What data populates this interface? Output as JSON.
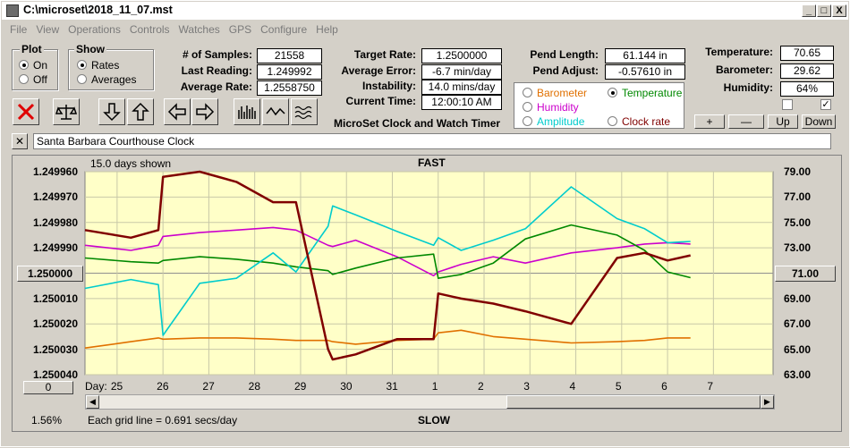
{
  "window": {
    "title": "C:\\microset\\2018_11_07.mst",
    "buttons": [
      "_",
      "□",
      "X"
    ]
  },
  "menu": [
    "File",
    "View",
    "Operations",
    "Controls",
    "Watches",
    "GPS",
    "Configure",
    "Help"
  ],
  "plot": {
    "legend": "Plot",
    "options": [
      "On",
      "Off"
    ],
    "selected": "On"
  },
  "show": {
    "legend": "Show",
    "options": [
      "Rates",
      "Averages"
    ],
    "selected": "Rates"
  },
  "stats": {
    "samples_label": "# of Samples:",
    "samples": "21558",
    "last_label": "Last Reading:",
    "last": "1.249992",
    "avg_label": "Average Rate:",
    "avg": "1.2558750"
  },
  "target": {
    "target_label": "Target Rate:",
    "target": "1.2500000",
    "err_label": "Average Error:",
    "err": "-6.7 min/day",
    "inst_label": "Instability:",
    "inst": "14.0 mins/day",
    "time_label": "Current Time:",
    "time": "12:00:10 AM",
    "app_title": "MicroSet Clock and Watch Timer"
  },
  "pend": {
    "length_label": "Pend Length:",
    "length": "61.144 in",
    "adjust_label": "Pend Adjust:",
    "adjust": "-0.57610 in"
  },
  "env": {
    "temp_label": "Temperature:",
    "temp": "70.65",
    "baro_label": "Barometer:",
    "baro": "29.62",
    "hum_label": "Humidity:",
    "hum": "64%",
    "checks": [
      false,
      true
    ],
    "buttons": [
      "+",
      "—",
      "Up",
      "Down"
    ]
  },
  "selector": {
    "options": [
      "Barometer",
      "Temperature",
      "Humidity",
      "Amplitude",
      "Clock rate"
    ],
    "colors": [
      "#e07000",
      "#008800",
      "#cc00cc",
      "#00cccc",
      "#800000"
    ],
    "selected": "Temperature"
  },
  "clock_name": "Santa Barbara Courthouse Clock",
  "chart": {
    "days_shown": "15.0 days shown",
    "top_label": "FAST",
    "bottom_label": "SLOW",
    "grid_note": "Each grid line = 0.691 secs/day",
    "zoom": "1.56%",
    "left_button": "0",
    "center_left_button": "1.250000",
    "center_right_button": "71.00",
    "day_label": "Day:"
  },
  "chart_data": {
    "type": "line",
    "y_left_ticks": [
      "1.249960",
      "1.249970",
      "1.249980",
      "1.249990",
      "1.250000",
      "1.250010",
      "1.250020",
      "1.250030",
      "1.250040"
    ],
    "y_right_ticks": [
      "79.00",
      "77.00",
      "75.00",
      "73.00",
      "71.00",
      "69.00",
      "67.00",
      "65.00",
      "63.00"
    ],
    "x_ticks": [
      "25",
      "26",
      "27",
      "28",
      "29",
      "30",
      "31",
      "1",
      "2",
      "3",
      "4",
      "5",
      "6",
      "7"
    ],
    "x": [
      24.3,
      25.3,
      25.9,
      26.0,
      26.8,
      27.6,
      28.4,
      28.9,
      29.6,
      29.7,
      30.2,
      31.1,
      31.9,
      32.0,
      32.5,
      33.2,
      33.9,
      34.9,
      35.9,
      36.5,
      37.0,
      37.5
    ],
    "series": [
      {
        "name": "Clock rate",
        "color": "#800000",
        "values": [
          1.249983,
          1.249986,
          1.249983,
          1.249962,
          1.24996,
          1.249964,
          1.249972,
          1.249972,
          1.25003,
          1.250034,
          1.250032,
          1.250026,
          1.250026,
          1.250008,
          1.25001,
          1.250012,
          1.250015,
          1.25002,
          1.249994,
          1.249992,
          1.249995,
          1.249993
        ]
      },
      {
        "name": "Temperature",
        "color": "#008800",
        "values": [
          72.2,
          71.9,
          71.8,
          72.0,
          72.3,
          72.1,
          71.8,
          71.5,
          71.2,
          70.9,
          71.4,
          72.2,
          72.5,
          70.6,
          70.9,
          71.8,
          73.7,
          74.8,
          74.0,
          72.8,
          71.1,
          70.65
        ]
      },
      {
        "name": "Humidity",
        "color": "#cc00cc",
        "values": [
          73.2,
          72.8,
          73.2,
          73.9,
          74.2,
          74.4,
          74.6,
          74.4,
          73.2,
          73.1,
          73.6,
          72.3,
          70.8,
          71.1,
          71.7,
          72.3,
          71.8,
          72.6,
          73.0,
          73.3,
          73.4,
          73.3
        ]
      },
      {
        "name": "Amplitude",
        "color": "#00cccc",
        "values": [
          69.8,
          70.5,
          70.1,
          66.1,
          70.2,
          70.6,
          72.6,
          71.1,
          74.7,
          76.3,
          75.6,
          74.3,
          73.2,
          73.8,
          72.8,
          73.6,
          74.5,
          77.8,
          75.3,
          74.5,
          73.4,
          73.5
        ]
      },
      {
        "name": "Barometer",
        "color": "#e07000",
        "values": [
          65.1,
          65.6,
          65.9,
          65.8,
          65.9,
          65.9,
          65.8,
          65.7,
          65.7,
          65.6,
          65.4,
          65.7,
          65.8,
          66.3,
          66.5,
          66.0,
          65.8,
          65.5,
          65.6,
          65.7,
          65.9,
          65.9
        ]
      }
    ]
  }
}
